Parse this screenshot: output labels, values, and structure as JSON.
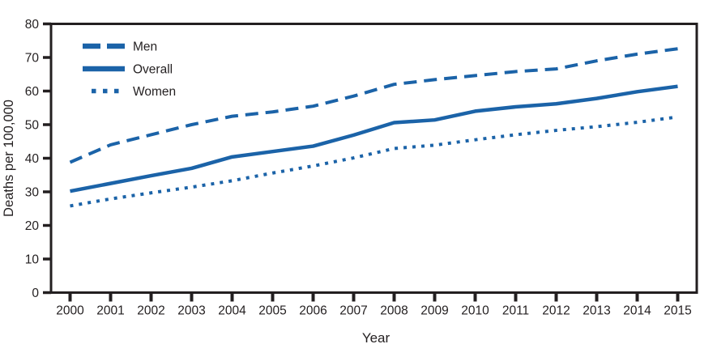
{
  "chart_data": {
    "type": "line",
    "title": "",
    "xlabel": "Year",
    "ylabel": "Deaths per 100,000",
    "x": [
      2000,
      2001,
      2002,
      2003,
      2004,
      2005,
      2006,
      2007,
      2008,
      2009,
      2010,
      2011,
      2012,
      2013,
      2014,
      2015
    ],
    "ylim": [
      0,
      80
    ],
    "yticks": [
      0,
      10,
      20,
      30,
      40,
      50,
      60,
      70,
      80
    ],
    "grid": false,
    "legend_position": "top-left-inside",
    "series": [
      {
        "name": "Men",
        "line_style": "dashed",
        "values": [
          38.8,
          44.0,
          47.0,
          50.0,
          52.5,
          53.8,
          55.5,
          58.5,
          62.0,
          63.4,
          64.6,
          65.8,
          66.6,
          69.0,
          71.0,
          72.6
        ]
      },
      {
        "name": "Overall",
        "line_style": "solid",
        "values": [
          30.2,
          32.5,
          34.8,
          37.0,
          40.4,
          42.0,
          43.6,
          46.9,
          50.6,
          51.4,
          54.0,
          55.3,
          56.2,
          57.8,
          59.8,
          61.4
        ]
      },
      {
        "name": "Women",
        "line_style": "dotted",
        "values": [
          25.8,
          27.9,
          29.7,
          31.4,
          33.3,
          35.6,
          37.7,
          40.1,
          42.9,
          43.9,
          45.5,
          47.0,
          48.3,
          49.4,
          50.7,
          52.3
        ]
      }
    ],
    "colors": {
      "line": "#1b63a8",
      "axis": "#231f20",
      "text": "#231f20",
      "background": "#ffffff"
    }
  }
}
